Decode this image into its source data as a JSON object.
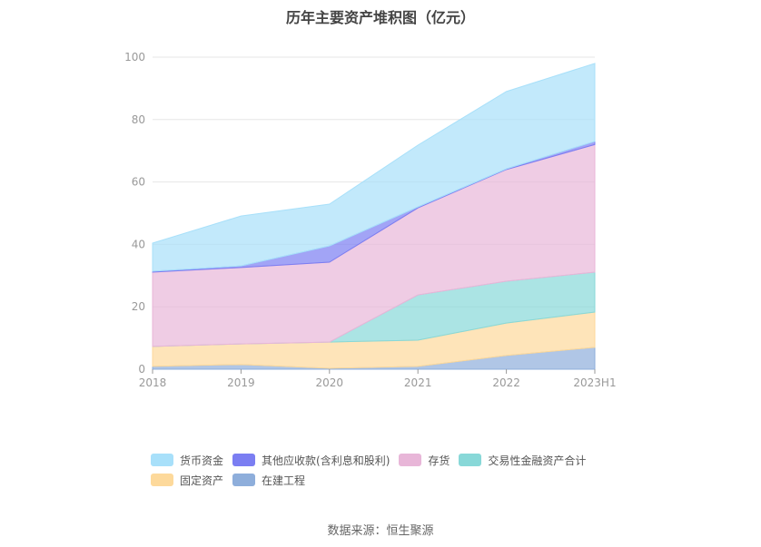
{
  "chart_data": {
    "type": "area",
    "stacked": true,
    "title": "历年主要资产堆积图（亿元）",
    "categories": [
      "2018",
      "2019",
      "2020",
      "2021",
      "2022",
      "2023H1"
    ],
    "ylim": [
      0,
      100
    ],
    "yticks": [
      0,
      20,
      40,
      60,
      80,
      100
    ],
    "grid": true,
    "legend_position": "bottom",
    "series": [
      {
        "name": "在建工程",
        "color": "#8eaedb",
        "values": [
          0.9,
          1.5,
          0.3,
          0.9,
          4.4,
          7.0
        ]
      },
      {
        "name": "固定资产",
        "color": "#fdd99b",
        "values": [
          6.4,
          6.6,
          8.4,
          8.4,
          10.4,
          11.3
        ]
      },
      {
        "name": "交易性金融资产合计",
        "color": "#88d8d8",
        "values": [
          0,
          0,
          0,
          14.5,
          13.4,
          12.8
        ]
      },
      {
        "name": "存货",
        "color": "#e8b6d8",
        "values": [
          23.8,
          24.5,
          25.6,
          27.9,
          35.8,
          40.9
        ]
      },
      {
        "name": "其他应收款(含利息和股利)",
        "color": "#7b7ef2",
        "values": [
          0.3,
          0.5,
          5.2,
          0.3,
          0.2,
          1.0
        ]
      },
      {
        "name": "货币资金",
        "color": "#a8e0fa",
        "values": [
          9.0,
          16.0,
          13.4,
          19.8,
          24.8,
          25.0
        ]
      }
    ],
    "legend_order": [
      5,
      4,
      3,
      2,
      1,
      0
    ]
  },
  "source": "数据来源：恒生聚源"
}
